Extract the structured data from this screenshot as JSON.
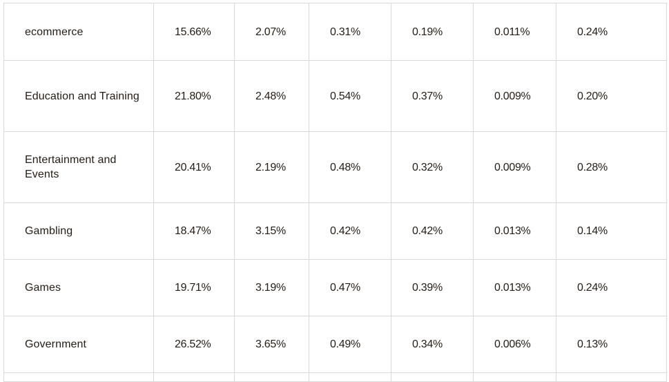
{
  "table": {
    "rows": [
      {
        "industry": "ecommerce",
        "values": [
          "15.66%",
          "2.07%",
          "0.31%",
          "0.19%",
          "0.011%",
          "0.24%"
        ]
      },
      {
        "industry": "Education and Training",
        "values": [
          "21.80%",
          "2.48%",
          "0.54%",
          "0.37%",
          "0.009%",
          "0.20%"
        ]
      },
      {
        "industry": "Entertainment and Events",
        "values": [
          "20.41%",
          "2.19%",
          "0.48%",
          "0.32%",
          "0.009%",
          "0.28%"
        ]
      },
      {
        "industry": "Gambling",
        "values": [
          "18.47%",
          "3.15%",
          "0.42%",
          "0.42%",
          "0.013%",
          "0.14%"
        ]
      },
      {
        "industry": "Games",
        "values": [
          "19.71%",
          "3.19%",
          "0.47%",
          "0.39%",
          "0.013%",
          "0.24%"
        ]
      },
      {
        "industry": "Government",
        "values": [
          "26.52%",
          "3.65%",
          "0.49%",
          "0.34%",
          "0.006%",
          "0.13%"
        ]
      }
    ]
  }
}
